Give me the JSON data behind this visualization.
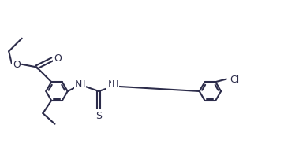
{
  "bg": "#ffffff",
  "lc": "#2c2c4a",
  "lw": 1.5,
  "fs": 9,
  "figsize": [
    3.6,
    2.07
  ],
  "dpi": 100,
  "r": 0.38,
  "xlim": [
    0,
    10
  ],
  "ylim": [
    0,
    5.75
  ]
}
